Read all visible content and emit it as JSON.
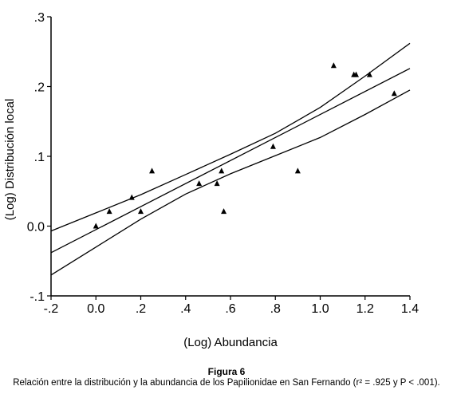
{
  "chart_data": {
    "type": "scatter",
    "xlabel": "(Log) Abundancia",
    "ylabel": "(Log) Distribución local",
    "xlim": [
      -0.2,
      1.4
    ],
    "ylim": [
      -0.1,
      0.3
    ],
    "x_tick_labels": [
      "-.2",
      "0.0",
      ".2",
      ".4",
      ".6",
      ".8",
      "1.0",
      "1.2",
      "1.4"
    ],
    "y_tick_labels": [
      "-.1",
      "0.0",
      ".1",
      ".2",
      ".3"
    ],
    "x_ticks": [
      -0.2,
      0.0,
      0.2,
      0.4,
      0.6,
      0.8,
      1.0,
      1.2,
      1.4
    ],
    "y_ticks": [
      -0.1,
      0.0,
      0.1,
      0.2,
      0.3
    ],
    "grid": false,
    "marker": "triangle",
    "points": [
      {
        "x": 0.0,
        "y": 0.0
      },
      {
        "x": 0.06,
        "y": 0.021
      },
      {
        "x": 0.16,
        "y": 0.041
      },
      {
        "x": 0.2,
        "y": 0.021
      },
      {
        "x": 0.25,
        "y": 0.079
      },
      {
        "x": 0.46,
        "y": 0.061
      },
      {
        "x": 0.54,
        "y": 0.061
      },
      {
        "x": 0.56,
        "y": 0.079
      },
      {
        "x": 0.57,
        "y": 0.021
      },
      {
        "x": 0.79,
        "y": 0.114
      },
      {
        "x": 0.9,
        "y": 0.079
      },
      {
        "x": 1.06,
        "y": 0.23
      },
      {
        "x": 1.15,
        "y": 0.217
      },
      {
        "x": 1.16,
        "y": 0.217
      },
      {
        "x": 1.22,
        "y": 0.217
      },
      {
        "x": 1.33,
        "y": 0.19
      }
    ],
    "fit_lines": [
      {
        "x": [
          -0.2,
          1.4
        ],
        "y": [
          -0.038,
          0.226
        ]
      },
      {
        "x": [
          -0.2,
          0.0,
          0.2,
          0.4,
          0.6,
          0.8,
          1.0,
          1.2,
          1.4
        ],
        "y": [
          -0.07,
          -0.03,
          0.01,
          0.046,
          0.075,
          0.101,
          0.127,
          0.16,
          0.195
        ]
      },
      {
        "x": [
          -0.2,
          0.0,
          0.2,
          0.4,
          0.6,
          0.8,
          1.0,
          1.2,
          1.4
        ],
        "y": [
          -0.007,
          0.019,
          0.045,
          0.074,
          0.103,
          0.133,
          0.17,
          0.215,
          0.262
        ]
      }
    ]
  },
  "caption": {
    "title": "Figura 6",
    "text": "Relación entre la distribución y la abundancia de los Papilionidae en San Fernando (r² = .925 y P < .001)."
  }
}
